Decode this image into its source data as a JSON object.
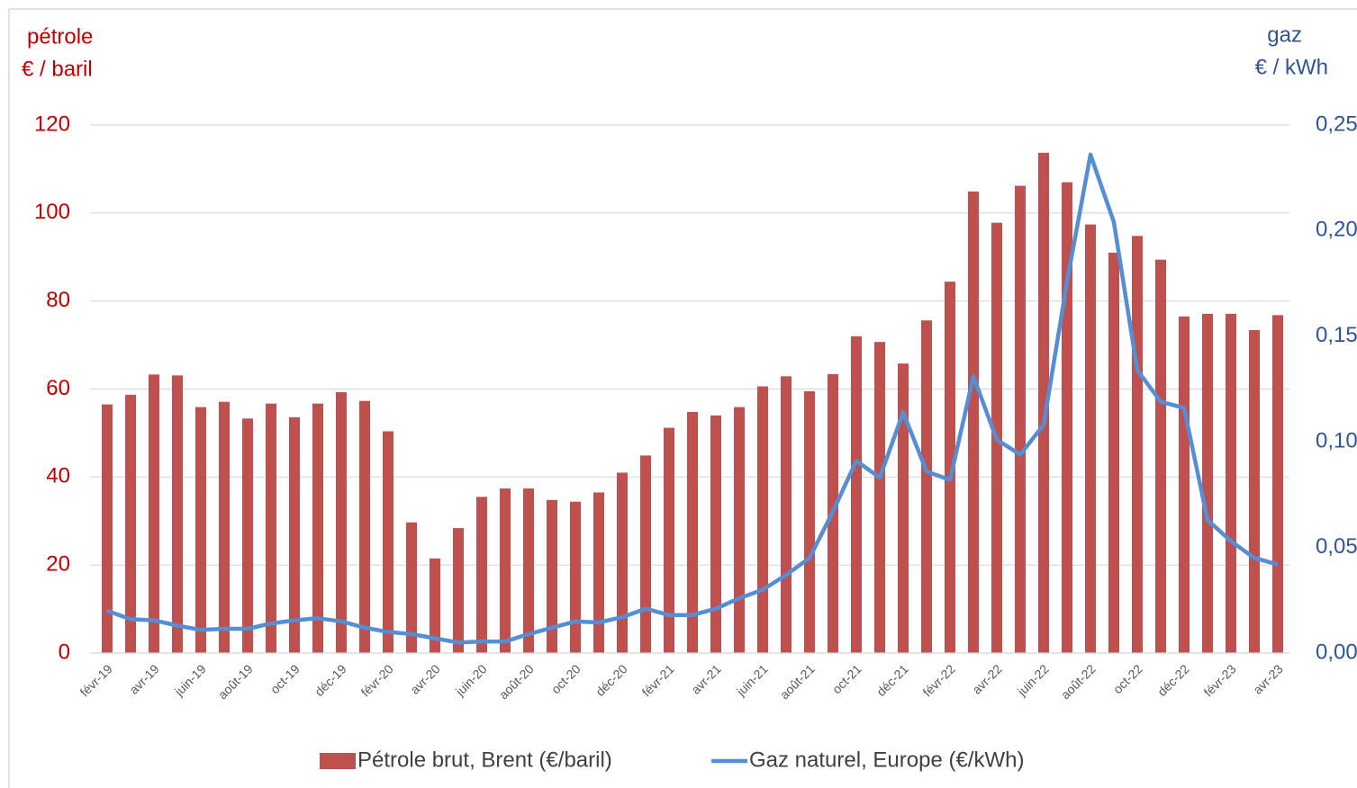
{
  "chart_data": {
    "type": "bar-line",
    "ylabel": [
      "pétrole",
      "€ / baril"
    ],
    "y2label": [
      "gaz",
      "€ / kWh"
    ],
    "categories": [
      "févr-19",
      null,
      "avr-19",
      null,
      "juin-19",
      null,
      "août-19",
      null,
      "oct-19",
      null,
      "déc-19",
      null,
      "févr-20",
      null,
      "avr-20",
      null,
      "juin-20",
      null,
      "août-20",
      null,
      "oct-20",
      null,
      "déc-20",
      null,
      "févr-21",
      null,
      "avr-21",
      null,
      "juin-21",
      null,
      "août-21",
      null,
      "oct-21",
      null,
      "déc-21",
      null,
      "févr-22",
      null,
      "avr-22",
      null,
      "juin-22",
      null,
      "août-22",
      null,
      "oct-22",
      null,
      "déc-22",
      null,
      "févr-23",
      null,
      "avr-23"
    ],
    "series": [
      {
        "name": "Pétrole brut, Brent (€/baril)",
        "color": "#c0504d",
        "kind": "bar",
        "values": [
          56.5,
          58.7,
          63.3,
          63.1,
          55.9,
          57.1,
          53.3,
          56.7,
          53.6,
          56.7,
          59.3,
          57.3,
          50.4,
          29.7,
          21.5,
          28.4,
          35.5,
          37.4,
          37.4,
          34.8,
          34.4,
          36.5,
          41,
          44.9,
          51.2,
          54.8,
          54,
          55.9,
          60.6,
          62.9,
          59.5,
          63.4,
          72,
          70.7,
          65.8,
          75.6,
          84.4,
          104.9,
          97.8,
          106.2,
          113.7,
          107,
          97.4,
          91,
          94.8,
          89.4,
          76.5,
          77.1,
          77.1,
          73.4,
          76.8
        ]
      },
      {
        "name": "Gaz naturel, Europe (€/kWh)",
        "color": "#558ed5",
        "kind": "line",
        "axis": "y2",
        "values": [
          0.02,
          0.016,
          0.0155,
          0.013,
          0.011,
          0.0115,
          0.0115,
          0.014,
          0.0155,
          0.0165,
          0.015,
          0.012,
          0.01,
          0.009,
          0.007,
          0.005,
          0.0055,
          0.0055,
          0.009,
          0.012,
          0.015,
          0.0145,
          0.017,
          0.021,
          0.018,
          0.018,
          0.021,
          0.026,
          0.03,
          0.037,
          0.045,
          0.067,
          0.091,
          0.083,
          0.114,
          0.086,
          0.082,
          0.131,
          0.101,
          0.094,
          0.108,
          0.176,
          0.236,
          0.204,
          0.134,
          0.119,
          0.116,
          0.063,
          0.053,
          0.045,
          0.042
        ]
      }
    ],
    "ylim": [
      0,
      120
    ],
    "yticks": [
      0,
      20,
      40,
      60,
      80,
      100,
      120
    ],
    "y2lim": [
      0,
      0.25
    ],
    "y2ticks": [
      {
        "value": 0,
        "label": "0,00"
      },
      {
        "value": 0.05,
        "label": "0,05"
      },
      {
        "value": 0.1,
        "label": "0,10"
      },
      {
        "value": 0.15,
        "label": "0,15"
      },
      {
        "value": 0.2,
        "label": "0,20"
      },
      {
        "value": 0.25,
        "label": "0,25"
      }
    ],
    "grid": true,
    "legend": "bottom"
  }
}
